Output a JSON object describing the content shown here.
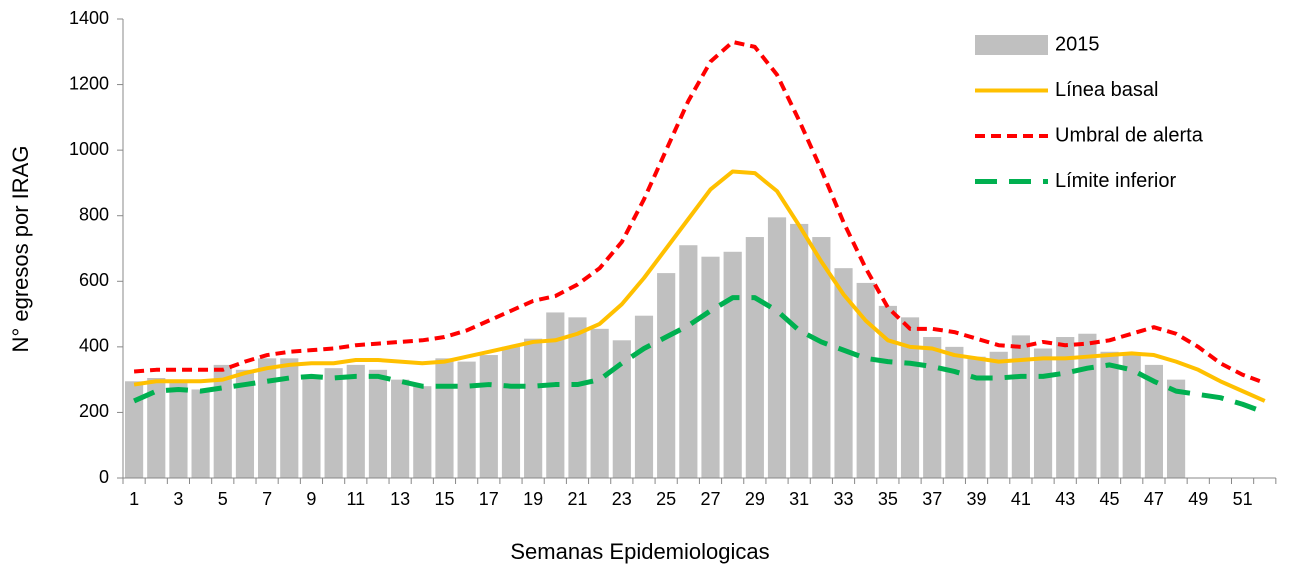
{
  "chart_data": {
    "type": "bar",
    "x_label": "Semanas Epidemiologicas",
    "y_label": "N° egresos por IRAG",
    "categories": [
      "1",
      null,
      "3",
      null,
      "5",
      null,
      "7",
      null,
      "9",
      null,
      "11",
      null,
      "13",
      null,
      "15",
      null,
      "17",
      null,
      "19",
      null,
      "21",
      null,
      "23",
      null,
      "25",
      null,
      "27",
      null,
      "29",
      null,
      "31",
      null,
      "33",
      null,
      "35",
      null,
      "37",
      null,
      "39",
      null,
      "41",
      null,
      "43",
      null,
      "45",
      null,
      "47",
      null,
      "49",
      null,
      "51",
      null
    ],
    "ylim": [
      0,
      1400
    ],
    "yticks": [
      0,
      200,
      400,
      600,
      800,
      1000,
      1200,
      1400
    ],
    "legend": "upper right",
    "series": [
      {
        "name": "2015",
        "type": "bar",
        "color": "#c0c0c0",
        "values": [
          295,
          305,
          290,
          270,
          345,
          330,
          365,
          365,
          315,
          335,
          345,
          330,
          300,
          280,
          365,
          355,
          375,
          400,
          425,
          505,
          490,
          455,
          420,
          495,
          625,
          710,
          675,
          690,
          735,
          795,
          775,
          735,
          640,
          595,
          525,
          490,
          430,
          400,
          370,
          385,
          435,
          395,
          430,
          440,
          385,
          375,
          345,
          300,
          null,
          null,
          null,
          null
        ]
      },
      {
        "name": "Línea basal",
        "type": "line",
        "color": "#ffc000",
        "dash": "solid",
        "values": [
          285,
          295,
          295,
          295,
          300,
          320,
          335,
          345,
          350,
          350,
          360,
          360,
          355,
          350,
          355,
          370,
          385,
          400,
          415,
          420,
          440,
          470,
          530,
          610,
          700,
          790,
          880,
          935,
          930,
          875,
          770,
          660,
          560,
          480,
          420,
          400,
          395,
          375,
          365,
          355,
          360,
          365,
          365,
          370,
          375,
          380,
          375,
          355,
          330,
          295,
          265,
          235
        ]
      },
      {
        "name": "Umbral de alerta",
        "type": "line",
        "color": "#ff0000",
        "dash": "short",
        "values": [
          325,
          330,
          330,
          330,
          330,
          355,
          375,
          385,
          390,
          395,
          405,
          410,
          415,
          420,
          430,
          450,
          480,
          510,
          540,
          555,
          590,
          640,
          720,
          850,
          1000,
          1150,
          1270,
          1330,
          1315,
          1230,
          1090,
          940,
          780,
          640,
          520,
          455,
          455,
          445,
          425,
          405,
          400,
          415,
          405,
          410,
          420,
          440,
          460,
          440,
          400,
          350,
          315,
          290
        ]
      },
      {
        "name": "Límite inferior",
        "type": "line",
        "color": "#00b050",
        "dash": "long",
        "values": [
          235,
          265,
          270,
          265,
          275,
          285,
          295,
          305,
          310,
          305,
          310,
          310,
          295,
          280,
          280,
          280,
          285,
          280,
          280,
          285,
          285,
          300,
          350,
          395,
          430,
          465,
          510,
          550,
          550,
          510,
          450,
          415,
          390,
          365,
          355,
          350,
          340,
          325,
          305,
          305,
          310,
          310,
          320,
          335,
          345,
          330,
          295,
          265,
          255,
          245,
          225,
          200
        ]
      }
    ]
  }
}
